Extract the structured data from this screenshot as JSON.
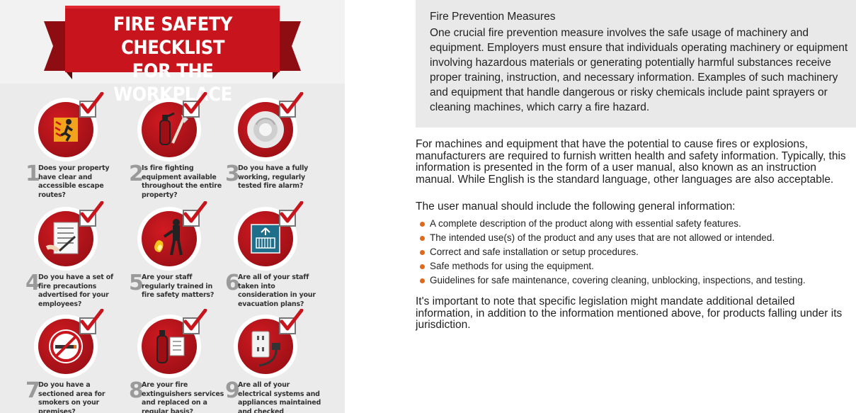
{
  "infographic": {
    "title_line1": "FIRE SAFETY CHECKLIST",
    "title_line2": "FOR THE WORKPLACE",
    "items": [
      {
        "num": "1",
        "question": "Does your property have clear and accessible escape routes?",
        "icon": "exit-running-man-icon"
      },
      {
        "num": "2",
        "question": "Is fire fighting equipment available throughout the entire property?",
        "icon": "fire-extinguisher-axe-icon"
      },
      {
        "num": "3",
        "question": "Do you have a fully working, regularly tested fire alarm?",
        "icon": "smoke-alarm-icon"
      },
      {
        "num": "4",
        "question": "Do you have a set of fire precautions advertised for your employees?",
        "icon": "checklist-clipboard-icon"
      },
      {
        "num": "5",
        "question": "Are your staff regularly trained in fire safety matters?",
        "icon": "firefighter-training-icon"
      },
      {
        "num": "6",
        "question": "Are all of your staff taken into consideration in your evacuation plans?",
        "icon": "evacuation-sign-icon"
      },
      {
        "num": "7",
        "question": "Do you have a sectioned area for smokers on your premises?",
        "icon": "no-smoking-icon"
      },
      {
        "num": "8",
        "question": "Are your fire extinguishers services and replaced on a regular basis?",
        "icon": "extinguisher-service-icon"
      },
      {
        "num": "9",
        "question": "Are all of your electrical systems and appliances maintained and checked regularly?",
        "icon": "electrical-outlet-plug-icon"
      }
    ],
    "colors": {
      "red": "#c8151d",
      "dark_red": "#8e0d12",
      "grey_bg": "#ebebeb"
    }
  },
  "article": {
    "box_title": "Fire Prevention Measures",
    "box_body": "One crucial fire prevention measure involves the safe usage of machinery and equipment. Employers must ensure that individuals operating machinery or equipment involving hazardous materials or generating potentially harmful substances receive proper training, instruction, and necessary information. Examples of such machinery and equipment that handle dangerous or risky chemicals include paint sprayers or cleaning machines, which carry a fire hazard.",
    "para1": "For machines and equipment that have the potential to cause fires or explosions, manufacturers are required to furnish written health and safety information. Typically, this information is presented in the form of a user manual, also known as an instruction manual. While English is the standard language, other languages are also acceptable.",
    "para2": "The user manual should include the following general information:",
    "bullets": [
      "A complete description of the product along with essential safety features.",
      "The intended use(s) of the product and any uses that are not allowed or intended.",
      "Correct and safe installation or setup procedures.",
      "Safe methods for using the equipment.",
      "Guidelines for safe maintenance, covering cleaning, unblocking, inspections, and testing."
    ],
    "para3": "It's important to note that specific legislation might mandate additional detailed information, in addition to the information mentioned above, for products falling under its jurisdiction.",
    "bullet_color": "#e06a1b"
  }
}
